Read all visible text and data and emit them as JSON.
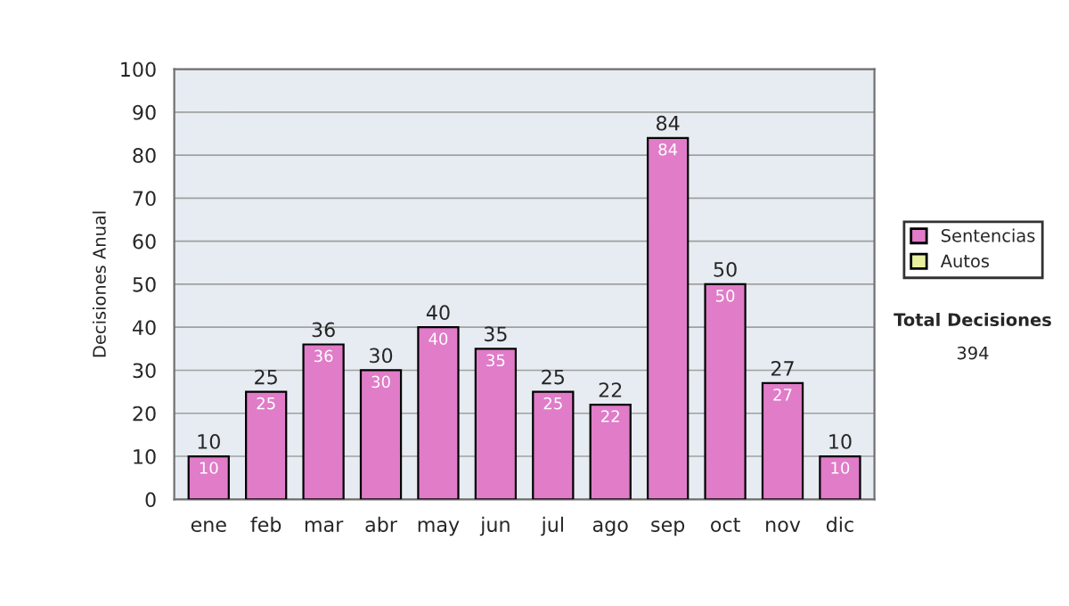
{
  "chart_data": {
    "type": "bar",
    "ylabel": "Decisiones Anual",
    "categories": [
      "ene",
      "feb",
      "mar",
      "abr",
      "may",
      "jun",
      "jul",
      "ago",
      "sep",
      "oct",
      "nov",
      "dic"
    ],
    "stacked": true,
    "series": [
      {
        "name": "Sentencias",
        "color": "#e07cc8",
        "values": [
          10,
          25,
          36,
          30,
          40,
          35,
          25,
          22,
          84,
          50,
          27,
          10
        ],
        "value_labels": [
          "10",
          "25",
          "36",
          "30",
          "40",
          "35",
          "25",
          "22",
          "84",
          "50",
          "27",
          "10"
        ]
      },
      {
        "name": "Autos",
        "color": "#e8f0a0",
        "values": [
          null,
          null,
          null,
          null,
          null,
          null,
          null,
          null,
          null,
          null,
          null,
          null
        ]
      }
    ],
    "totals": [
      "10",
      "25",
      "36",
      "30",
      "40",
      "35",
      "25",
      "22",
      "84",
      "50",
      "27",
      "10"
    ],
    "ylim": [
      0,
      100
    ],
    "yticks": [
      0,
      10,
      20,
      30,
      40,
      50,
      60,
      70,
      80,
      90,
      100
    ],
    "grid": "y",
    "legend": "right",
    "annotations": [
      "Total Decisiones",
      "394"
    ]
  }
}
